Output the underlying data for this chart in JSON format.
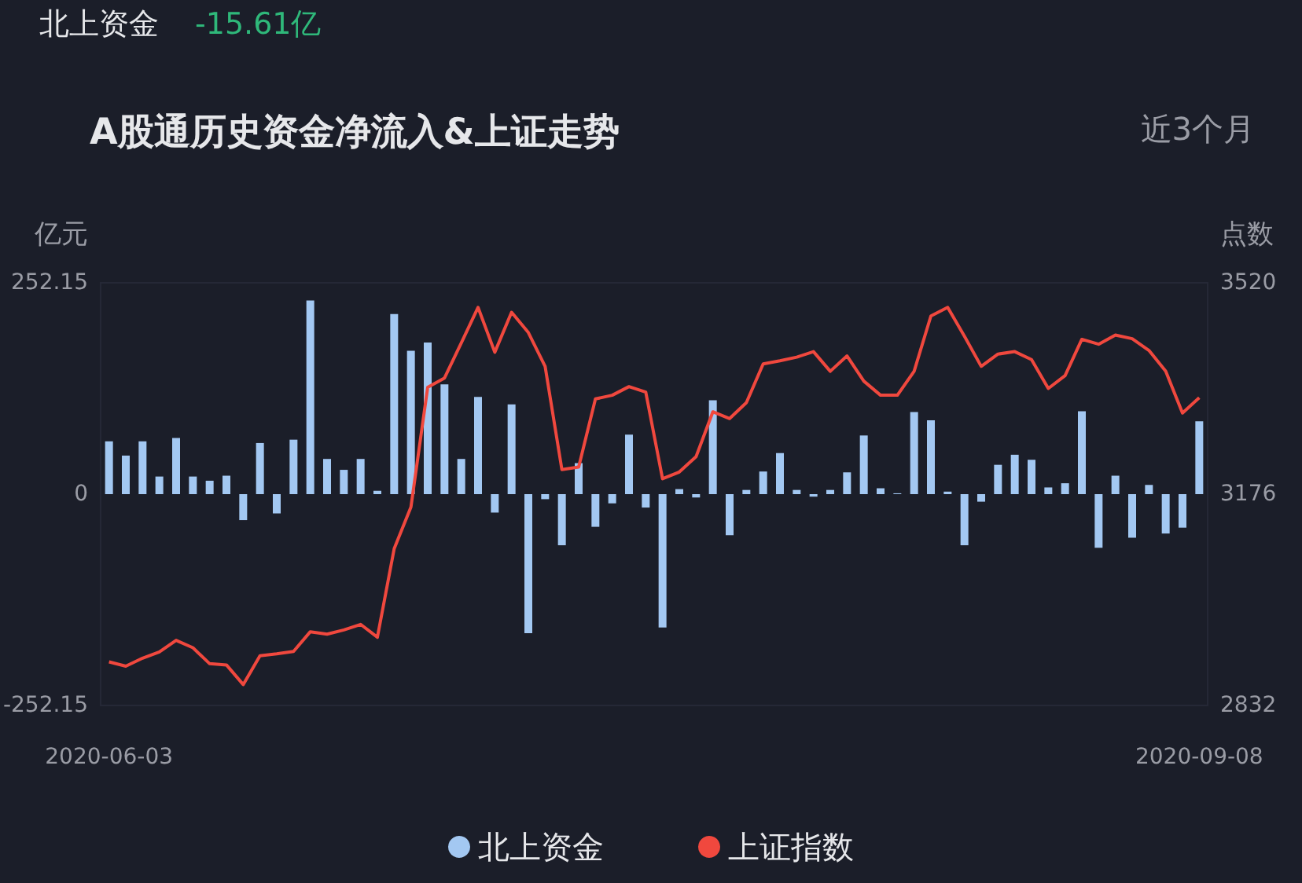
{
  "chart_data": {
    "type": "bar",
    "title": "A股通历史资金净流入&上证走势",
    "annotations": [
      "北上资金",
      "-15.61亿",
      "近3个月"
    ],
    "ylabel": "亿元",
    "y2label": "点数",
    "categories": [
      "2020-06-03",
      null,
      null,
      null,
      null,
      null,
      null,
      null,
      null,
      null,
      null,
      null,
      null,
      null,
      null,
      null,
      null,
      null,
      null,
      null,
      null,
      null,
      null,
      null,
      null,
      null,
      null,
      null,
      null,
      null,
      null,
      null,
      null,
      null,
      null,
      null,
      null,
      null,
      null,
      null,
      null,
      null,
      null,
      null,
      null,
      null,
      null,
      null,
      null,
      null,
      null,
      null,
      null,
      null,
      null,
      null,
      null,
      null,
      null,
      null,
      null,
      null,
      null,
      null,
      null,
      "2020-09-08"
    ],
    "series": [
      {
        "name": "北上资金",
        "color": "#a3c8f2",
        "values": [
          63,
          46,
          63,
          21,
          67,
          21,
          16,
          22,
          -31,
          61,
          -23,
          65,
          231,
          42,
          29,
          42,
          4,
          215,
          171,
          181,
          131,
          42,
          116,
          -22,
          107,
          -166,
          -6,
          -61,
          37,
          -39,
          -11,
          71,
          -16,
          -159,
          6,
          -4,
          112,
          -49,
          5,
          27,
          49,
          5,
          -3,
          5,
          26,
          70,
          7,
          1,
          98,
          88,
          3,
          -61,
          -9,
          35,
          47,
          41,
          8,
          13,
          99,
          -64,
          22,
          -52,
          11,
          -47,
          -40,
          87
        ]
      },
      {
        "name": "上证指数",
        "type": "line",
        "axis": "y2",
        "color": "#f0483e",
        "values": [
          2903,
          2896,
          2909,
          2919,
          2938,
          2926,
          2900,
          2898,
          2866,
          2913,
          2916,
          2920,
          2952,
          2948,
          2955,
          2964,
          2943,
          3087,
          3155,
          3350,
          3365,
          3422,
          3480,
          3407,
          3472,
          3439,
          3384,
          3216,
          3220,
          3331,
          3337,
          3351,
          3342,
          3201,
          3212,
          3237,
          3310,
          3299,
          3325,
          3388,
          3393,
          3399,
          3408,
          3376,
          3401,
          3360,
          3337,
          3337,
          3376,
          3466,
          3480,
          3433,
          3384,
          3404,
          3408,
          3395,
          3348,
          3369,
          3428,
          3420,
          3435,
          3429,
          3410,
          3376,
          3308,
          3333
        ]
      }
    ],
    "ylim": [
      -252.15,
      252.15
    ],
    "yticks": [
      -252.15,
      0,
      252.15
    ],
    "y2lim": [
      2832,
      3520
    ],
    "y2ticks": [
      2832,
      3176,
      3520
    ],
    "grid": false,
    "legend": "bottom",
    "marker": "none",
    "line_style": "solid"
  }
}
